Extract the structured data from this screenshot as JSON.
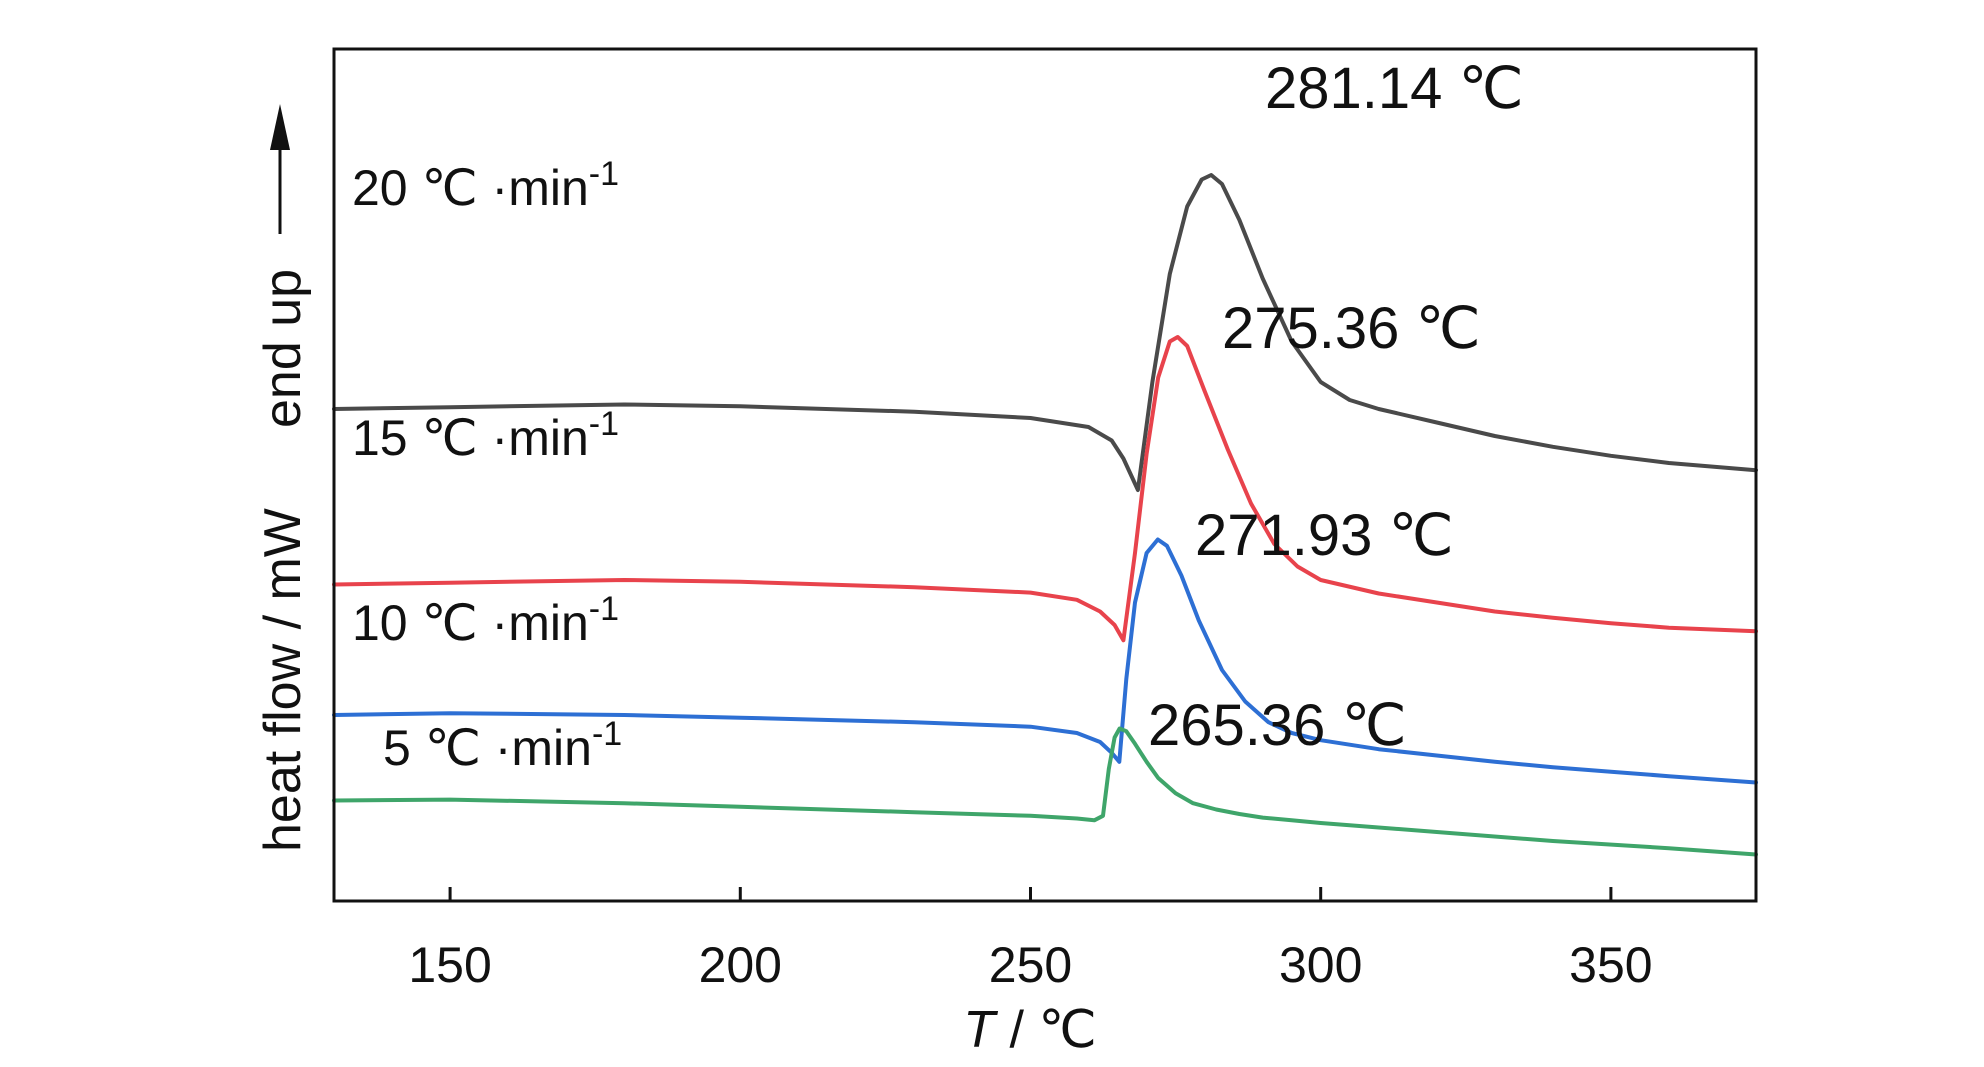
{
  "chart_data": {
    "type": "line",
    "xlabel": "T / ℃",
    "xlabel_italic_part": "T",
    "xlabel_rest": " / ℃",
    "ylabel": "heat flow / mW",
    "ylabel_arrow_text": "end up",
    "xlim": [
      130,
      375
    ],
    "x_ticks": [
      150,
      200,
      250,
      300,
      350
    ],
    "y_ticks_shown": false,
    "grid": false,
    "legend": "none",
    "series": [
      {
        "name": "20 ℃ ·min-1",
        "label_main": "20 ℃ ·min",
        "label_sup": "-1",
        "color": "#4a4a4a",
        "peak_label": "281.14 ℃",
        "peak_x": 281.14,
        "x": [
          130,
          150,
          180,
          200,
          230,
          250,
          260,
          264,
          266,
          268.5,
          271,
          274,
          277,
          279.5,
          281.14,
          283,
          286,
          290,
          295,
          300,
          305,
          310,
          320,
          330,
          340,
          350,
          360,
          375
        ],
        "y": [
          4.9,
          4.92,
          4.95,
          4.93,
          4.87,
          4.8,
          4.7,
          4.55,
          4.35,
          4.0,
          5.2,
          6.4,
          7.15,
          7.45,
          7.5,
          7.4,
          7.0,
          6.35,
          5.65,
          5.2,
          5.0,
          4.9,
          4.75,
          4.6,
          4.48,
          4.38,
          4.3,
          4.22
        ]
      },
      {
        "name": "15 ℃ ·min-1",
        "label_main": "15 ℃ ·min",
        "label_sup": "-1",
        "color": "#e8434c",
        "peak_label": "275.36 ℃",
        "peak_x": 275.36,
        "x": [
          130,
          150,
          180,
          200,
          230,
          250,
          258,
          262,
          264.5,
          266,
          268,
          270,
          272,
          274,
          275.36,
          277,
          280,
          284,
          288,
          292,
          296,
          300,
          310,
          320,
          330,
          340,
          350,
          360,
          375
        ],
        "y": [
          2.95,
          2.97,
          3.0,
          2.98,
          2.92,
          2.86,
          2.78,
          2.65,
          2.5,
          2.33,
          3.3,
          4.4,
          5.25,
          5.65,
          5.7,
          5.6,
          5.1,
          4.45,
          3.85,
          3.4,
          3.15,
          3.0,
          2.85,
          2.75,
          2.65,
          2.58,
          2.52,
          2.47,
          2.43
        ]
      },
      {
        "name": "10 ℃ ·min-1",
        "label_main": "10 ℃ ·min",
        "label_sup": "-1",
        "color": "#2d6fd4",
        "peak_label": "271.93 ℃",
        "peak_x": 271.93,
        "x": [
          130,
          150,
          180,
          200,
          230,
          250,
          258,
          262,
          264,
          265.3,
          266.5,
          268,
          270,
          271.93,
          273.5,
          276,
          279,
          283,
          287,
          291,
          295,
          300,
          310,
          320,
          330,
          340,
          350,
          360,
          375
        ],
        "y": [
          1.5,
          1.52,
          1.5,
          1.47,
          1.42,
          1.37,
          1.3,
          1.2,
          1.08,
          0.98,
          1.9,
          2.75,
          3.3,
          3.45,
          3.38,
          3.05,
          2.55,
          2.0,
          1.65,
          1.42,
          1.3,
          1.22,
          1.12,
          1.05,
          0.98,
          0.92,
          0.87,
          0.82,
          0.75
        ]
      },
      {
        "name": "5 ℃ ·min-1",
        "label_main": "5 ℃ ·min",
        "label_sup": "-1",
        "color": "#3fa56a",
        "peak_label": "265.36 ℃",
        "peak_x": 265.36,
        "x": [
          130,
          150,
          180,
          200,
          230,
          250,
          258,
          261,
          262.5,
          263.5,
          264.5,
          265.36,
          266.5,
          268,
          270,
          272,
          275,
          278,
          282,
          286,
          290,
          295,
          300,
          320,
          340,
          360,
          375
        ],
        "y": [
          0.55,
          0.56,
          0.52,
          0.48,
          0.42,
          0.38,
          0.35,
          0.33,
          0.38,
          0.9,
          1.25,
          1.35,
          1.32,
          1.18,
          0.98,
          0.8,
          0.63,
          0.52,
          0.45,
          0.4,
          0.36,
          0.33,
          0.3,
          0.2,
          0.1,
          0.02,
          -0.05
        ]
      }
    ]
  }
}
